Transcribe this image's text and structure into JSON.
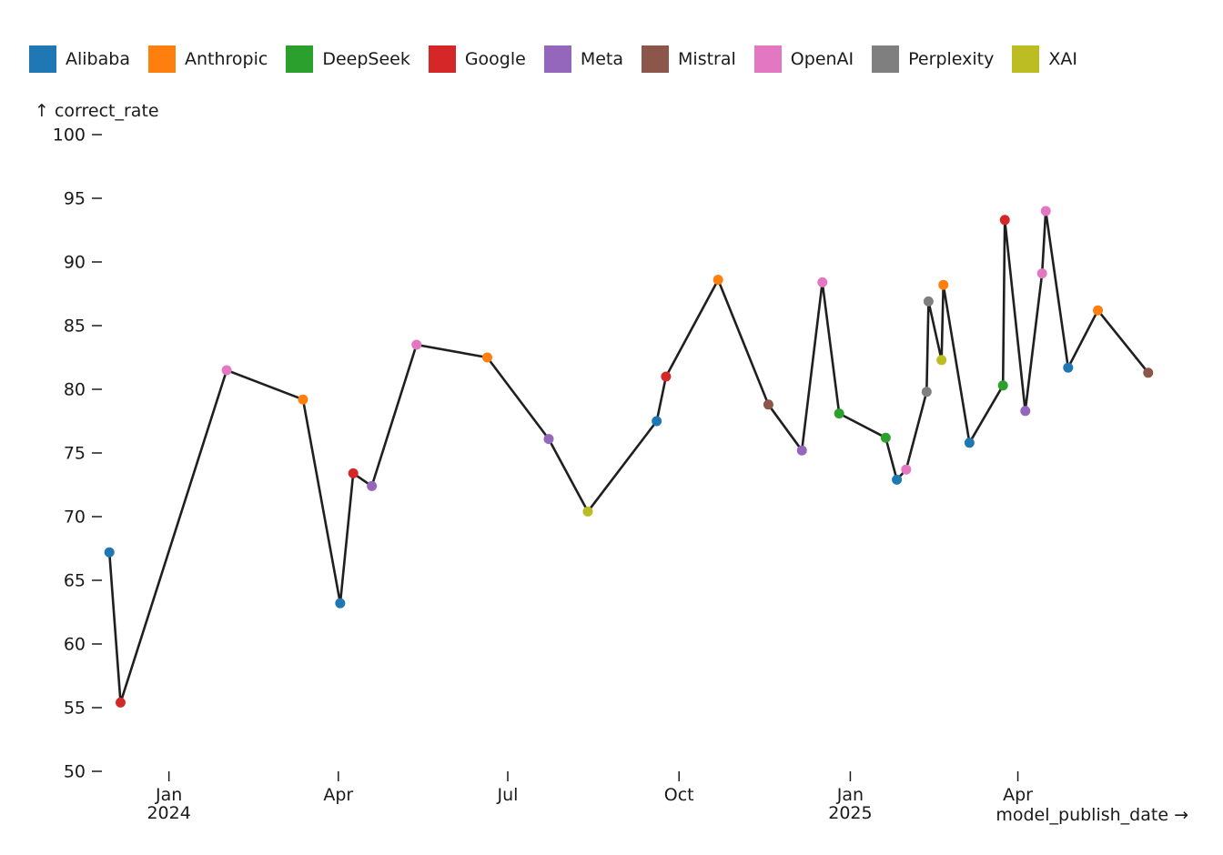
{
  "chart_data": {
    "type": "line",
    "xlabel": "model_publish_date →",
    "ylabel": "↑ correct_rate",
    "ylim": [
      50,
      100
    ],
    "xlim": [
      "2023-11-26",
      "2025-06-15"
    ],
    "y_ticks": [
      50,
      55,
      60,
      65,
      70,
      75,
      80,
      85,
      90,
      95,
      100
    ],
    "x_ticks": [
      {
        "date": "2024-01-01",
        "label": "Jan",
        "sublabel": "2024"
      },
      {
        "date": "2024-04-01",
        "label": "Apr",
        "sublabel": ""
      },
      {
        "date": "2024-07-01",
        "label": "Jul",
        "sublabel": ""
      },
      {
        "date": "2024-10-01",
        "label": "Oct",
        "sublabel": ""
      },
      {
        "date": "2025-01-01",
        "label": "Jan",
        "sublabel": "2025"
      },
      {
        "date": "2025-04-01",
        "label": "Apr",
        "sublabel": ""
      }
    ],
    "legend_position": "top-left",
    "line_color": "#1f1f1f",
    "organizations": [
      {
        "name": "Alibaba",
        "color": "#1f77b4"
      },
      {
        "name": "Anthropic",
        "color": "#ff7f0e"
      },
      {
        "name": "DeepSeek",
        "color": "#2ca02c"
      },
      {
        "name": "Google",
        "color": "#d62728"
      },
      {
        "name": "Meta",
        "color": "#9467bd"
      },
      {
        "name": "Mistral",
        "color": "#8c564b"
      },
      {
        "name": "OpenAI",
        "color": "#e377c2"
      },
      {
        "name": "Perplexity",
        "color": "#7f7f7f"
      },
      {
        "name": "XAI",
        "color": "#bcbd22"
      }
    ],
    "points": [
      {
        "date": "2023-11-30",
        "value": 67.2,
        "org": "Alibaba"
      },
      {
        "date": "2023-12-06",
        "value": 55.4,
        "org": "Google"
      },
      {
        "date": "2024-02-01",
        "value": 81.5,
        "org": "OpenAI"
      },
      {
        "date": "2024-03-13",
        "value": 79.2,
        "org": "Anthropic"
      },
      {
        "date": "2024-04-02",
        "value": 63.2,
        "org": "Alibaba"
      },
      {
        "date": "2024-04-09",
        "value": 73.4,
        "org": "Google"
      },
      {
        "date": "2024-04-19",
        "value": 72.4,
        "org": "Meta"
      },
      {
        "date": "2024-05-13",
        "value": 83.5,
        "org": "OpenAI"
      },
      {
        "date": "2024-06-20",
        "value": 82.5,
        "org": "Anthropic"
      },
      {
        "date": "2024-07-23",
        "value": 76.1,
        "org": "Meta"
      },
      {
        "date": "2024-08-13",
        "value": 70.4,
        "org": "XAI"
      },
      {
        "date": "2024-09-19",
        "value": 77.5,
        "org": "Alibaba"
      },
      {
        "date": "2024-09-24",
        "value": 81.0,
        "org": "Google"
      },
      {
        "date": "2024-10-22",
        "value": 88.6,
        "org": "Anthropic"
      },
      {
        "date": "2024-11-18",
        "value": 78.8,
        "org": "Mistral"
      },
      {
        "date": "2024-12-06",
        "value": 75.2,
        "org": "Meta"
      },
      {
        "date": "2024-12-17",
        "value": 88.4,
        "org": "OpenAI"
      },
      {
        "date": "2024-12-26",
        "value": 78.1,
        "org": "DeepSeek"
      },
      {
        "date": "2025-01-20",
        "value": 76.2,
        "org": "DeepSeek"
      },
      {
        "date": "2025-01-26",
        "value": 72.9,
        "org": "Alibaba"
      },
      {
        "date": "2025-01-31",
        "value": 73.7,
        "org": "OpenAI"
      },
      {
        "date": "2025-02-11",
        "value": 79.8,
        "org": "Perplexity"
      },
      {
        "date": "2025-02-12",
        "value": 86.9,
        "org": "Perplexity"
      },
      {
        "date": "2025-02-19",
        "value": 82.3,
        "org": "XAI"
      },
      {
        "date": "2025-02-20",
        "value": 88.2,
        "org": "Anthropic"
      },
      {
        "date": "2025-03-06",
        "value": 75.8,
        "org": "Alibaba"
      },
      {
        "date": "2025-03-24",
        "value": 80.3,
        "org": "DeepSeek"
      },
      {
        "date": "2025-03-25",
        "value": 93.3,
        "org": "Google"
      },
      {
        "date": "2025-04-05",
        "value": 78.3,
        "org": "Meta"
      },
      {
        "date": "2025-04-14",
        "value": 89.1,
        "org": "OpenAI"
      },
      {
        "date": "2025-04-16",
        "value": 94.0,
        "org": "OpenAI"
      },
      {
        "date": "2025-04-28",
        "value": 81.7,
        "org": "Alibaba"
      },
      {
        "date": "2025-05-14",
        "value": 86.2,
        "org": "Anthropic"
      },
      {
        "date": "2025-06-10",
        "value": 81.3,
        "org": "Mistral"
      }
    ]
  }
}
